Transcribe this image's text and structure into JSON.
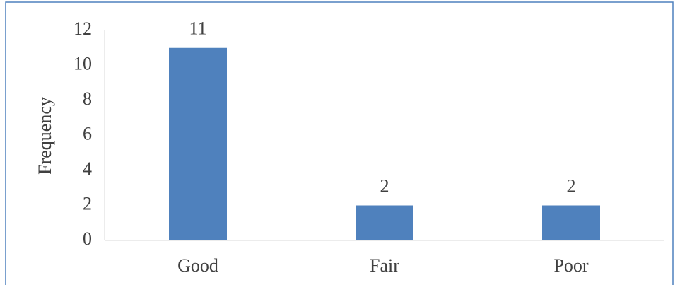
{
  "chart_data": {
    "type": "bar",
    "categories": [
      "Good",
      "Fair",
      "Poor"
    ],
    "values": [
      11,
      2,
      2
    ],
    "color": "#4f81bd",
    "ylabel": "Frequency",
    "ylim": [
      0,
      12
    ],
    "yticks": [
      0,
      2,
      4,
      6,
      8,
      10,
      12
    ],
    "grid": false,
    "data_labels": true
  }
}
